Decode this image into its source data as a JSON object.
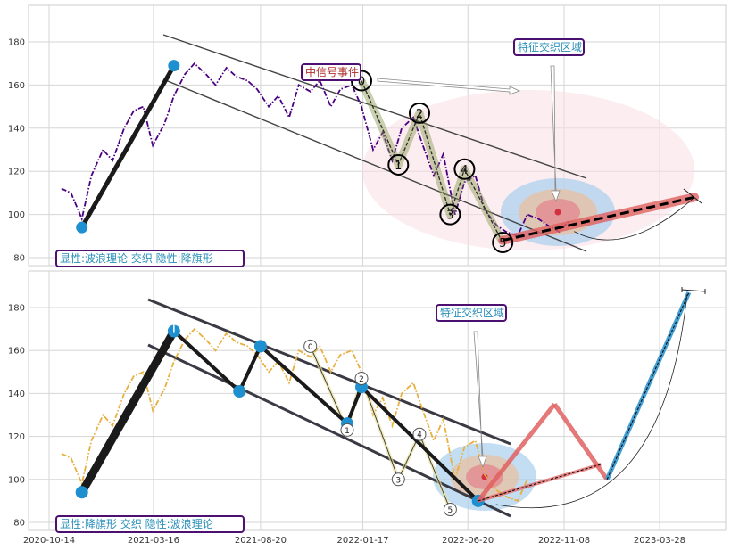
{
  "chart_data": [
    {
      "type": "line",
      "panel": "top",
      "x_ticks": [],
      "y_ticks": [
        "80",
        "100",
        "120",
        "140",
        "160",
        "180"
      ],
      "ylim": [
        77,
        196
      ],
      "grid": true,
      "series": [
        {
          "color": "#4b0082",
          "style": "dash-dot",
          "x": [
            "2020-11-01",
            "2020-11-15",
            "2020-12-01",
            "2020-12-15",
            "2021-01-01",
            "2021-01-15",
            "2021-02-01",
            "2021-02-15",
            "2021-03-01",
            "2021-03-15",
            "2021-04-01",
            "2021-04-15",
            "2021-05-01",
            "2021-05-15",
            "2021-06-01",
            "2021-06-15",
            "2021-07-01",
            "2021-07-15",
            "2021-08-01",
            "2021-08-15",
            "2021-09-01",
            "2021-09-15",
            "2021-10-01",
            "2021-10-15",
            "2021-11-01",
            "2021-11-15",
            "2021-12-01",
            "2021-12-15",
            "2022-01-01",
            "2022-01-15",
            "2022-02-01",
            "2022-02-15",
            "2022-03-01",
            "2022-03-15",
            "2022-04-01",
            "2022-04-15",
            "2022-05-01",
            "2022-05-15",
            "2022-06-01",
            "2022-06-15",
            "2022-07-01",
            "2022-07-15",
            "2022-08-01",
            "2022-08-15",
            "2022-09-01",
            "2022-09-15",
            "2022-10-01",
            "2022-10-15",
            "2022-11-01",
            "2022-11-15"
          ],
          "values": [
            112,
            110,
            98,
            118,
            130,
            125,
            140,
            148,
            150,
            132,
            142,
            155,
            165,
            170,
            165,
            160,
            168,
            164,
            162,
            158,
            150,
            155,
            145,
            160,
            157,
            162,
            150,
            158,
            160,
            150,
            130,
            138,
            125,
            140,
            145,
            132,
            118,
            128,
            100,
            115,
            118,
            102,
            95,
            92,
            90,
            100,
            98,
            95,
            92,
            97
          ]
        }
      ],
      "waves": [
        {
          "x": "2020-12-01",
          "y": 94
        },
        {
          "x": "2021-04-15",
          "y": 169
        }
      ],
      "wave_labels": [
        {
          "label": "0",
          "x": "2022-01-15",
          "y": 162
        },
        {
          "label": "1",
          "x": "2022-03-10",
          "y": 123
        },
        {
          "label": "2",
          "x": "2022-04-10",
          "y": 147
        },
        {
          "label": "3",
          "x": "2022-05-25",
          "y": 100
        },
        {
          "label": "4",
          "x": "2022-06-15",
          "y": 121
        },
        {
          "label": "5",
          "x": "2022-08-10",
          "y": 87
        }
      ],
      "annotations": [
        {
          "id": "signal",
          "text": "中信号事件"
        },
        {
          "id": "feature",
          "text": "特征交织区域"
        },
        {
          "id": "legend",
          "text": "显性:波浪理论 交织 隐性:降旗形"
        }
      ]
    },
    {
      "type": "line",
      "panel": "bottom",
      "x_ticks": [
        "2020-10-14",
        "2021-03-16",
        "2021-08-20",
        "2022-01-17",
        "2022-06-20",
        "2022-11-08",
        "2023-03-28"
      ],
      "y_ticks": [
        "80",
        "100",
        "120",
        "140",
        "160",
        "180"
      ],
      "ylim": [
        77,
        196
      ],
      "grid": true,
      "series": [
        {
          "color": "#e8b040",
          "style": "dash-dot",
          "x": [
            "2020-11-01",
            "2020-11-15",
            "2020-12-01",
            "2020-12-15",
            "2021-01-01",
            "2021-01-15",
            "2021-02-01",
            "2021-02-15",
            "2021-03-01",
            "2021-03-15",
            "2021-04-01",
            "2021-04-15",
            "2021-05-01",
            "2021-05-15",
            "2021-06-01",
            "2021-06-15",
            "2021-07-01",
            "2021-07-15",
            "2021-08-01",
            "2021-08-15",
            "2021-09-01",
            "2021-09-15",
            "2021-10-01",
            "2021-10-15",
            "2021-11-01",
            "2021-11-15",
            "2021-12-01",
            "2021-12-15",
            "2022-01-01",
            "2022-01-15",
            "2022-02-01",
            "2022-02-15",
            "2022-03-01",
            "2022-03-15",
            "2022-04-01",
            "2022-04-15",
            "2022-05-01",
            "2022-05-15",
            "2022-06-01",
            "2022-06-15",
            "2022-07-01",
            "2022-07-15",
            "2022-08-01",
            "2022-08-15",
            "2022-09-01",
            "2022-09-15"
          ],
          "values": [
            112,
            110,
            98,
            118,
            130,
            125,
            140,
            148,
            150,
            132,
            142,
            155,
            165,
            170,
            165,
            160,
            168,
            164,
            162,
            158,
            150,
            155,
            145,
            160,
            157,
            162,
            150,
            158,
            160,
            150,
            130,
            138,
            125,
            140,
            145,
            132,
            118,
            128,
            100,
            115,
            118,
            102,
            95,
            92,
            90,
            100
          ]
        }
      ],
      "pivots": [
        {
          "x": "2020-12-01",
          "y": 94
        },
        {
          "x": "2021-04-15",
          "y": 169
        },
        {
          "x": "2021-07-20",
          "y": 141
        },
        {
          "x": "2021-08-20",
          "y": 162
        },
        {
          "x": "2021-12-25",
          "y": 126
        },
        {
          "x": "2022-01-15",
          "y": 143
        },
        {
          "x": "2022-07-05",
          "y": 90
        }
      ],
      "wave_labels": [
        {
          "label": "0",
          "x": "2021-11-01",
          "y": 162
        },
        {
          "label": "1",
          "x": "2021-12-25",
          "y": 123
        },
        {
          "label": "2",
          "x": "2022-01-15",
          "y": 147
        },
        {
          "label": "3",
          "x": "2022-03-10",
          "y": 100
        },
        {
          "label": "4",
          "x": "2022-04-10",
          "y": 121
        },
        {
          "label": "5",
          "x": "2022-05-25",
          "y": 86
        }
      ],
      "projection": [
        {
          "x": "2022-07-05",
          "y": 90
        },
        {
          "x": "2022-10-25",
          "y": 135
        },
        {
          "x": "2023-01-10",
          "y": 100
        },
        {
          "x": "2023-05-10",
          "y": 187
        }
      ],
      "annotations": [
        {
          "id": "feature",
          "text": "特征交织区域"
        },
        {
          "id": "legend",
          "text": "显性:降旗形 交织 隐性:波浪理论"
        }
      ]
    }
  ],
  "colors": {
    "primary": "#4b0082",
    "secondary": "#e8b040",
    "accent": "#1e90d0",
    "box_text": "#2a8fb8",
    "box_border": "#4b1070",
    "signal_text": "#b03030",
    "projection_red": "#e06060",
    "projection_blue": "#3a9ad0"
  }
}
